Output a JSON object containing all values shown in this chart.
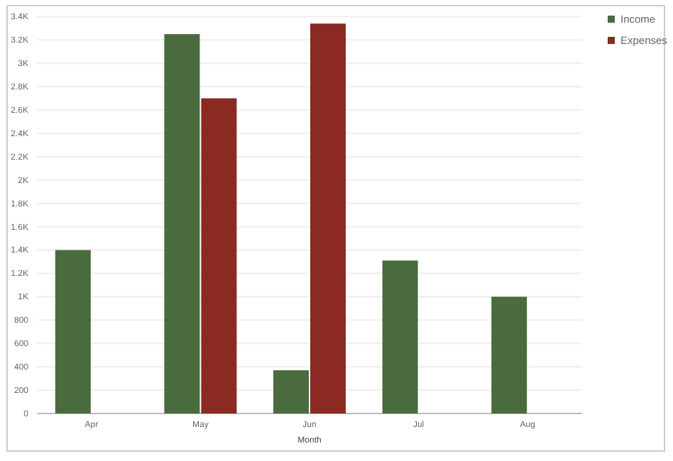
{
  "chart_data": {
    "type": "bar",
    "xlabel": "Month",
    "categories": [
      "Apr",
      "May",
      "Jun",
      "Jul",
      "Aug"
    ],
    "series": [
      {
        "name": "Income",
        "color": "#4a6b3d",
        "values": [
          1400,
          3250,
          370,
          1310,
          1000
        ]
      },
      {
        "name": "Expenses",
        "color": "#8a2a22",
        "values": [
          null,
          2700,
          3340,
          null,
          null
        ]
      }
    ],
    "ylim": [
      0,
      3400
    ],
    "yticks": [
      0,
      200,
      400,
      600,
      800,
      {
        "value": 1000,
        "label": "1K"
      },
      {
        "value": 1200,
        "label": "1.2K"
      },
      {
        "value": 1400,
        "label": "1.4K"
      },
      {
        "value": 1600,
        "label": "1.6K"
      },
      {
        "value": 1800,
        "label": "1.8K"
      },
      {
        "value": 2000,
        "label": "2K"
      },
      {
        "value": 2200,
        "label": "2.2K"
      },
      {
        "value": 2400,
        "label": "2.4K"
      },
      {
        "value": 2600,
        "label": "2.6K"
      },
      {
        "value": 2800,
        "label": "2.8K"
      },
      {
        "value": 3000,
        "label": "3K"
      },
      {
        "value": 3200,
        "label": "3.2K"
      },
      {
        "value": 3400,
        "label": "3.4K"
      }
    ],
    "grid": "y",
    "legend": "top right"
  }
}
